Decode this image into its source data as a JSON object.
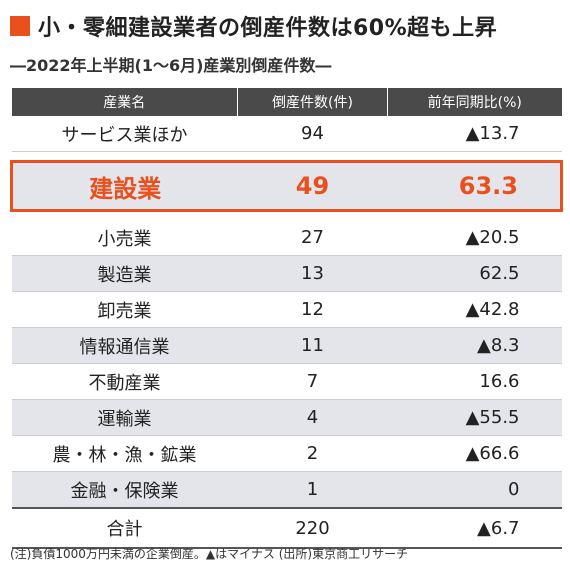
{
  "title": "小・零細建設業者の倒産件数は60%超も上昇",
  "subtitle": "―2022年上半期(1〜6月)産業別倒産件数―",
  "colors": {
    "accent": "#e8501e",
    "header_bg": "#4a4a4a",
    "row_shade": "#e4e5ea"
  },
  "table": {
    "headers": [
      "産業名",
      "倒産件数(件)",
      "前年同期比(%)"
    ],
    "rows": [
      {
        "name": "サービス業ほか",
        "count": "94",
        "yoy": "▲13.7"
      },
      {
        "name": "建設業",
        "count": "49",
        "yoy": "63.3"
      },
      {
        "name": "小売業",
        "count": "27",
        "yoy": "▲20.5"
      },
      {
        "name": "製造業",
        "count": "13",
        "yoy": "62.5"
      },
      {
        "name": "卸売業",
        "count": "12",
        "yoy": "▲42.8"
      },
      {
        "name": "情報通信業",
        "count": "11",
        "yoy": "▲8.3"
      },
      {
        "name": "不動産業",
        "count": "7",
        "yoy": "16.6"
      },
      {
        "name": "運輸業",
        "count": "4",
        "yoy": "▲55.5"
      },
      {
        "name": "農・林・漁・鉱業",
        "count": "2",
        "yoy": "▲66.6"
      },
      {
        "name": "金融・保険業",
        "count": "1",
        "yoy": "0"
      }
    ],
    "total": {
      "name": "合計",
      "count": "220",
      "yoy": "▲6.7"
    }
  },
  "footnote": "(注)負債1000万円未満の企業倒産。▲はマイナス  (出所)東京商工リサーチ"
}
